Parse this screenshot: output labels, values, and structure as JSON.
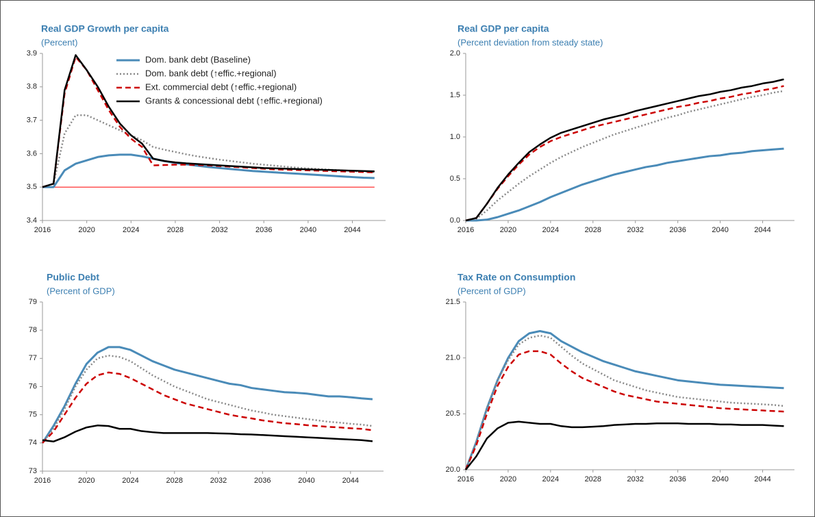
{
  "chart_data": [
    {
      "type": "line",
      "title": "Real GDP Growth per capita",
      "subtitle": "(Percent)",
      "x": [
        2016,
        2017,
        2018,
        2019,
        2020,
        2021,
        2022,
        2023,
        2024,
        2025,
        2026,
        2027,
        2028,
        2029,
        2030,
        2031,
        2032,
        2033,
        2034,
        2035,
        2036,
        2037,
        2038,
        2039,
        2040,
        2041,
        2042,
        2043,
        2044,
        2045,
        2046
      ],
      "xlim": [
        2016,
        2047
      ],
      "xticks": [
        2016,
        2020,
        2024,
        2028,
        2032,
        2036,
        2040,
        2044
      ],
      "ylim": [
        3.4,
        3.9
      ],
      "yticks": [
        3.4,
        3.5,
        3.6,
        3.7,
        3.8,
        3.9
      ],
      "legend": "top",
      "hline": {
        "value": 3.5,
        "color": "#ff0000"
      },
      "series": [
        {
          "name": "Dom. bank debt (Baseline)",
          "color": "#4a8bb8",
          "style": "solid",
          "values": [
            3.5,
            3.5,
            3.55,
            3.57,
            3.58,
            3.59,
            3.595,
            3.597,
            3.597,
            3.592,
            3.585,
            3.578,
            3.572,
            3.568,
            3.564,
            3.56,
            3.557,
            3.554,
            3.551,
            3.548,
            3.546,
            3.544,
            3.542,
            3.54,
            3.538,
            3.536,
            3.534,
            3.532,
            3.53,
            3.528,
            3.527
          ]
        },
        {
          "name": "Dom. bank debt (↑effic.+regional)",
          "color": "#888888",
          "style": "dotted",
          "values": [
            3.5,
            3.51,
            3.66,
            3.715,
            3.715,
            3.7,
            3.685,
            3.67,
            3.655,
            3.64,
            3.62,
            3.612,
            3.605,
            3.598,
            3.592,
            3.587,
            3.582,
            3.578,
            3.574,
            3.57,
            3.567,
            3.564,
            3.561,
            3.558,
            3.556,
            3.554,
            3.552,
            3.55,
            3.548,
            3.546,
            3.545
          ]
        },
        {
          "name": "Ext. commercial debt (↑effic.+regional)",
          "color": "#cc0000",
          "style": "dashed",
          "values": [
            3.5,
            3.51,
            3.78,
            3.89,
            3.85,
            3.79,
            3.73,
            3.68,
            3.645,
            3.62,
            3.565,
            3.566,
            3.567,
            3.567,
            3.566,
            3.565,
            3.563,
            3.561,
            3.559,
            3.557,
            3.555,
            3.553,
            3.552,
            3.551,
            3.55,
            3.549,
            3.548,
            3.547,
            3.546,
            3.545,
            3.544
          ]
        },
        {
          "name": "Grants & concessional debt (↑effic.+regional)",
          "color": "#000000",
          "style": "solid",
          "values": [
            3.5,
            3.51,
            3.79,
            3.895,
            3.85,
            3.8,
            3.74,
            3.69,
            3.655,
            3.63,
            3.585,
            3.578,
            3.574,
            3.571,
            3.569,
            3.567,
            3.565,
            3.563,
            3.561,
            3.559,
            3.557,
            3.556,
            3.555,
            3.554,
            3.553,
            3.552,
            3.551,
            3.55,
            3.549,
            3.548,
            3.547
          ]
        }
      ]
    },
    {
      "type": "line",
      "title": "Real GDP per capita",
      "subtitle": "(Percent deviation from steady state)",
      "x": [
        2016,
        2017,
        2018,
        2019,
        2020,
        2021,
        2022,
        2023,
        2024,
        2025,
        2026,
        2027,
        2028,
        2029,
        2030,
        2031,
        2032,
        2033,
        2034,
        2035,
        2036,
        2037,
        2038,
        2039,
        2040,
        2041,
        2042,
        2043,
        2044,
        2045,
        2046
      ],
      "xlim": [
        2016,
        2047
      ],
      "xticks": [
        2016,
        2020,
        2024,
        2028,
        2032,
        2036,
        2040,
        2044
      ],
      "ylim": [
        0,
        2
      ],
      "yticks": [
        {
          "value": 0,
          "label": "0.0"
        },
        0.5,
        {
          "value": 1,
          "label": "1.0"
        },
        1.5,
        {
          "value": 2,
          "label": "2.0"
        }
      ],
      "series": [
        {
          "color": "#4a8bb8",
          "style": "solid",
          "values": [
            0,
            0,
            0.01,
            0.04,
            0.08,
            0.12,
            0.17,
            0.22,
            0.28,
            0.33,
            0.38,
            0.43,
            0.47,
            0.51,
            0.55,
            0.58,
            0.61,
            0.64,
            0.66,
            0.69,
            0.71,
            0.73,
            0.75,
            0.77,
            0.78,
            0.8,
            0.81,
            0.83,
            0.84,
            0.85,
            0.86
          ]
        },
        {
          "color": "#888888",
          "style": "dotted",
          "values": [
            0,
            0.02,
            0.12,
            0.24,
            0.34,
            0.44,
            0.53,
            0.61,
            0.69,
            0.76,
            0.82,
            0.88,
            0.93,
            0.98,
            1.03,
            1.07,
            1.11,
            1.15,
            1.19,
            1.23,
            1.26,
            1.3,
            1.33,
            1.36,
            1.39,
            1.42,
            1.45,
            1.48,
            1.5,
            1.53,
            1.55
          ]
        },
        {
          "color": "#cc0000",
          "style": "dashed",
          "values": [
            0,
            0.03,
            0.2,
            0.38,
            0.53,
            0.67,
            0.79,
            0.88,
            0.95,
            1.0,
            1.04,
            1.08,
            1.12,
            1.15,
            1.18,
            1.21,
            1.24,
            1.27,
            1.3,
            1.33,
            1.36,
            1.38,
            1.41,
            1.43,
            1.46,
            1.48,
            1.51,
            1.53,
            1.56,
            1.58,
            1.61
          ]
        },
        {
          "color": "#000000",
          "style": "solid",
          "values": [
            0,
            0.03,
            0.2,
            0.39,
            0.55,
            0.69,
            0.82,
            0.91,
            0.99,
            1.05,
            1.09,
            1.13,
            1.17,
            1.21,
            1.24,
            1.27,
            1.31,
            1.34,
            1.37,
            1.4,
            1.43,
            1.46,
            1.49,
            1.51,
            1.54,
            1.56,
            1.59,
            1.61,
            1.64,
            1.66,
            1.69
          ]
        }
      ]
    },
    {
      "type": "line",
      "title": "Public Debt",
      "subtitle": "(Percent of GDP)",
      "x": [
        2016,
        2017,
        2018,
        2019,
        2020,
        2021,
        2022,
        2023,
        2024,
        2025,
        2026,
        2027,
        2028,
        2029,
        2030,
        2031,
        2032,
        2033,
        2034,
        2035,
        2036,
        2037,
        2038,
        2039,
        2040,
        2041,
        2042,
        2043,
        2044,
        2045,
        2046
      ],
      "xlim": [
        2016,
        2047
      ],
      "xticks": [
        2016,
        2020,
        2024,
        2028,
        2032,
        2036,
        2040,
        2044
      ],
      "ylim": [
        73,
        79
      ],
      "yticks": [
        73,
        74,
        75,
        76,
        77,
        78,
        79
      ],
      "series": [
        {
          "color": "#4a8bb8",
          "style": "solid",
          "values": [
            74.0,
            74.6,
            75.3,
            76.1,
            76.8,
            77.2,
            77.4,
            77.4,
            77.3,
            77.1,
            76.9,
            76.75,
            76.6,
            76.5,
            76.4,
            76.3,
            76.2,
            76.1,
            76.05,
            75.95,
            75.9,
            75.85,
            75.8,
            75.78,
            75.75,
            75.7,
            75.65,
            75.65,
            75.62,
            75.58,
            75.55
          ]
        },
        {
          "color": "#888888",
          "style": "dotted",
          "values": [
            74.0,
            74.5,
            75.2,
            76.0,
            76.6,
            77.0,
            77.1,
            77.05,
            76.9,
            76.65,
            76.4,
            76.2,
            76.0,
            75.85,
            75.7,
            75.55,
            75.45,
            75.35,
            75.25,
            75.15,
            75.08,
            75.0,
            74.95,
            74.9,
            74.85,
            74.8,
            74.75,
            74.72,
            74.68,
            74.65,
            74.6
          ]
        },
        {
          "color": "#cc0000",
          "style": "dashed",
          "values": [
            74.0,
            74.4,
            75.0,
            75.6,
            76.1,
            76.4,
            76.5,
            76.45,
            76.3,
            76.1,
            75.9,
            75.7,
            75.55,
            75.4,
            75.3,
            75.2,
            75.1,
            75.0,
            74.93,
            74.87,
            74.8,
            74.75,
            74.7,
            74.67,
            74.63,
            74.6,
            74.57,
            74.55,
            74.52,
            74.5,
            74.45
          ]
        },
        {
          "color": "#000000",
          "style": "solid",
          "values": [
            74.1,
            74.05,
            74.2,
            74.4,
            74.55,
            74.62,
            74.6,
            74.5,
            74.5,
            74.42,
            74.38,
            74.35,
            74.35,
            74.35,
            74.35,
            74.35,
            74.34,
            74.33,
            74.31,
            74.3,
            74.28,
            74.26,
            74.24,
            74.22,
            74.2,
            74.18,
            74.16,
            74.14,
            74.12,
            74.1,
            74.06
          ]
        }
      ]
    },
    {
      "type": "line",
      "title": "Tax Rate on Consumption",
      "subtitle": "(Percent of GDP)",
      "x": [
        2016,
        2017,
        2018,
        2019,
        2020,
        2021,
        2022,
        2023,
        2024,
        2025,
        2026,
        2027,
        2028,
        2029,
        2030,
        2031,
        2032,
        2033,
        2034,
        2035,
        2036,
        2037,
        2038,
        2039,
        2040,
        2041,
        2042,
        2043,
        2044,
        2045,
        2046
      ],
      "xlim": [
        2016,
        2047
      ],
      "xticks": [
        2016,
        2020,
        2024,
        2028,
        2032,
        2036,
        2040,
        2044
      ],
      "ylim": [
        20,
        21.5
      ],
      "yticks": [
        {
          "value": 20,
          "label": "20.0"
        },
        20.5,
        {
          "value": 21,
          "label": "21.0"
        },
        21.5
      ],
      "series": [
        {
          "color": "#4a8bb8",
          "style": "solid",
          "values": [
            20.0,
            20.25,
            20.55,
            20.8,
            21.0,
            21.15,
            21.22,
            21.24,
            21.22,
            21.15,
            21.1,
            21.05,
            21.01,
            20.97,
            20.94,
            20.91,
            20.88,
            20.86,
            20.84,
            20.82,
            20.8,
            20.79,
            20.78,
            20.77,
            20.76,
            20.755,
            20.75,
            20.745,
            20.74,
            20.735,
            20.73
          ]
        },
        {
          "color": "#888888",
          "style": "dotted",
          "values": [
            20.0,
            20.25,
            20.55,
            20.8,
            20.98,
            21.12,
            21.18,
            21.2,
            21.18,
            21.1,
            21.02,
            20.95,
            20.9,
            20.85,
            20.8,
            20.77,
            20.74,
            20.71,
            20.69,
            20.67,
            20.65,
            20.64,
            20.63,
            20.62,
            20.61,
            20.6,
            20.595,
            20.59,
            20.585,
            20.58,
            20.57
          ]
        },
        {
          "color": "#cc0000",
          "style": "dashed",
          "values": [
            20.0,
            20.22,
            20.5,
            20.75,
            20.92,
            21.03,
            21.06,
            21.06,
            21.03,
            20.95,
            20.88,
            20.82,
            20.78,
            20.74,
            20.7,
            20.67,
            20.65,
            20.63,
            20.61,
            20.6,
            20.59,
            20.58,
            20.57,
            20.56,
            20.55,
            20.545,
            20.54,
            20.535,
            20.53,
            20.525,
            20.52
          ]
        },
        {
          "color": "#000000",
          "style": "solid",
          "values": [
            20.0,
            20.12,
            20.28,
            20.37,
            20.42,
            20.43,
            20.42,
            20.41,
            20.41,
            20.39,
            20.38,
            20.38,
            20.385,
            20.39,
            20.4,
            20.405,
            20.41,
            20.41,
            20.415,
            20.415,
            20.415,
            20.41,
            20.41,
            20.41,
            20.405,
            20.405,
            20.4,
            20.4,
            20.4,
            20.395,
            20.39
          ]
        }
      ]
    }
  ]
}
